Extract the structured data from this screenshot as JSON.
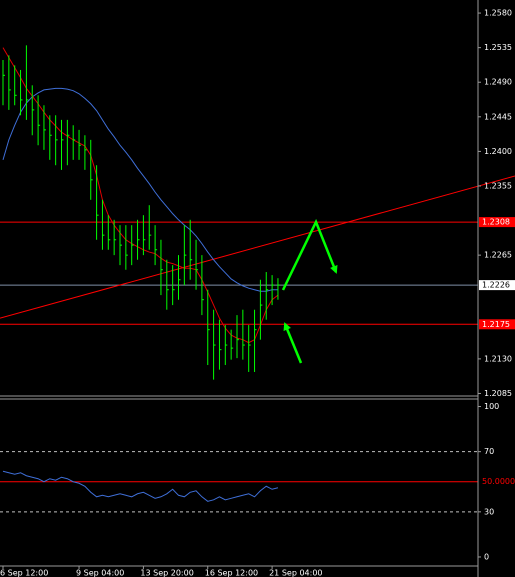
{
  "chart_data": [
    {
      "type": "ohlc",
      "categories": [
        "6 Sep 12:00",
        null,
        null,
        null,
        null,
        null,
        null,
        null,
        null,
        null,
        null,
        null,
        null,
        "9 Sep 04:00",
        null,
        null,
        null,
        null,
        null,
        null,
        null,
        null,
        null,
        null,
        "13 Sep 20:00",
        null,
        null,
        null,
        null,
        null,
        null,
        null,
        null,
        null,
        null,
        "16 Sep 12:00",
        null,
        null,
        null,
        null,
        null,
        null,
        null,
        null,
        null,
        null,
        "21 Sep 04:00",
        null
      ],
      "high": [
        1.2519,
        1.2525,
        1.2512,
        1.2506,
        1.2538,
        1.2486,
        1.2473,
        1.246,
        1.2447,
        1.2447,
        1.2441,
        1.2441,
        1.2434,
        1.2428,
        1.2421,
        1.2415,
        1.2382,
        1.2337,
        1.2317,
        1.2311,
        1.2304,
        1.2304,
        1.2304,
        1.2311,
        1.2317,
        1.233,
        1.2304,
        1.2285,
        1.2259,
        1.2252,
        1.2265,
        1.2304,
        1.2311,
        1.2285,
        1.2265,
        1.222,
        1.2194,
        1.2181,
        1.2174,
        1.2168,
        1.2187,
        1.2194,
        1.2174,
        1.2194,
        1.2233,
        1.2243,
        1.2239,
        1.2235
      ],
      "low": [
        1.246,
        1.2454,
        1.246,
        1.2447,
        1.2441,
        1.2421,
        1.2408,
        1.2402,
        1.2389,
        1.2382,
        1.2376,
        1.2382,
        1.2389,
        1.2389,
        1.2376,
        1.2337,
        1.2285,
        1.2272,
        1.2272,
        1.2265,
        1.2252,
        1.2246,
        1.2252,
        1.2259,
        1.2265,
        1.2272,
        1.2252,
        1.2213,
        1.2194,
        1.22,
        1.2207,
        1.2226,
        1.2233,
        1.222,
        1.2187,
        1.2122,
        1.2103,
        1.2116,
        1.2122,
        1.2129,
        1.2131,
        1.2129,
        1.2113,
        1.2113,
        1.2155,
        1.2181,
        1.22,
        1.2207
      ],
      "close": [
        1.2499,
        1.248,
        1.2473,
        1.2467,
        1.2467,
        1.2454,
        1.2434,
        1.2428,
        1.2421,
        1.2415,
        1.2415,
        1.2421,
        1.2415,
        1.2408,
        1.2402,
        1.2363,
        1.2317,
        1.2291,
        1.2285,
        1.2285,
        1.2278,
        1.2265,
        1.2278,
        1.2285,
        1.2285,
        1.2291,
        1.2272,
        1.2246,
        1.222,
        1.222,
        1.2233,
        1.2265,
        1.2259,
        1.2246,
        1.2207,
        1.2168,
        1.2148,
        1.2142,
        1.2148,
        1.2144,
        1.2155,
        1.2148,
        1.2148,
        1.2168,
        1.22,
        1.222,
        1.2226,
        1.2226
      ],
      "color": "#00ff00",
      "moving_averages": [
        {
          "color": "#3f6fd8",
          "values": [
            1.2389,
            1.2415,
            1.2434,
            1.2451,
            1.2463,
            1.2471,
            1.2476,
            1.248,
            1.2481,
            1.2482,
            1.2482,
            1.2481,
            1.2479,
            1.2475,
            1.2469,
            1.2462,
            1.2453,
            1.2441,
            1.2429,
            1.2419,
            1.2408,
            1.2399,
            1.2389,
            1.2378,
            1.2368,
            1.2358,
            1.2347,
            1.2337,
            1.2328,
            1.2319,
            1.2311,
            1.2304,
            1.2298,
            1.229,
            1.228,
            1.2269,
            1.2259,
            1.225,
            1.2242,
            1.2234,
            1.2229,
            1.2225,
            1.2222,
            1.222,
            1.2218,
            1.2218,
            1.222,
            1.222
          ]
        },
        {
          "color": "#e00000",
          "values": [
            1.2535,
            1.2522,
            1.2509,
            1.2496,
            1.2482,
            1.2472,
            1.2462,
            1.2451,
            1.2441,
            1.2433,
            1.2425,
            1.242,
            1.2415,
            1.2411,
            1.2407,
            1.2395,
            1.2369,
            1.2337,
            1.2317,
            1.2304,
            1.2294,
            1.2285,
            1.228,
            1.2276,
            1.2272,
            1.2269,
            1.2267,
            1.2261,
            1.2256,
            1.2254,
            1.2251,
            1.2248,
            1.2248,
            1.2246,
            1.2233,
            1.2217,
            1.22,
            1.2183,
            1.217,
            1.2161,
            1.2157,
            1.2155,
            1.2151,
            1.2155,
            1.2174,
            1.2194,
            1.2207,
            1.2213
          ]
        }
      ],
      "levels": [
        {
          "value": 1.2308,
          "color": "#ff0000"
        },
        {
          "value": 1.2226,
          "color": "#7f8fa8"
        },
        {
          "value": 1.2175,
          "color": "#ff0000"
        }
      ],
      "trend_line": {
        "values": [
          1.2183,
          1.2368
        ],
        "color": "#ff0000"
      },
      "ylim": [
        1.2083,
        1.2597
      ],
      "yticks": [
        {
          "value": 1.258,
          "label": "1.2580"
        },
        1.2535,
        {
          "value": 1.249,
          "label": "1.2490"
        },
        1.2445,
        {
          "value": 1.24,
          "label": "1.2400"
        },
        1.2355,
        1.2265,
        {
          "value": 1.213,
          "label": "1.2130"
        },
        1.2085
      ]
    },
    {
      "type": "line",
      "values": [
        57,
        56,
        55,
        56,
        54,
        53,
        52,
        50,
        52,
        51,
        53,
        52,
        50,
        49,
        47,
        43,
        40,
        41,
        40,
        41,
        42,
        41,
        40,
        42,
        43,
        41,
        39,
        40,
        42,
        45,
        41,
        40,
        43,
        44,
        40,
        37,
        38,
        40,
        38,
        39,
        40,
        41,
        42,
        40,
        44,
        47,
        45,
        46
      ],
      "color": "#3f6fd8",
      "level": {
        "value": 50,
        "label": "50.0000",
        "color": "#ff0000"
      },
      "ylim": [
        -6,
        105
      ],
      "yticks": [
        100,
        70,
        30,
        0
      ]
    }
  ]
}
